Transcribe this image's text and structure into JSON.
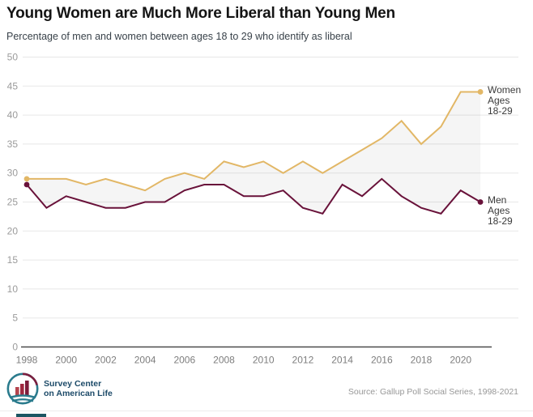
{
  "header": {
    "title": "Young Women are Much More Liberal than Young Men",
    "subtitle": "Percentage of men and women between ages 18 to 29 who identify as liberal"
  },
  "chart_data": {
    "type": "line",
    "x": [
      1998,
      1999,
      2000,
      2001,
      2002,
      2003,
      2004,
      2005,
      2006,
      2007,
      2008,
      2009,
      2010,
      2011,
      2012,
      2013,
      2014,
      2015,
      2016,
      2017,
      2018,
      2019,
      2020,
      2021
    ],
    "series": [
      {
        "name": "Women Ages 18-29",
        "end_label_lines": [
          "Women",
          "Ages",
          "18-29"
        ],
        "color": "#e2b766",
        "values": [
          29,
          29,
          29,
          28,
          29,
          28,
          27,
          29,
          30,
          29,
          32,
          31,
          32,
          30,
          32,
          30,
          32,
          34,
          36,
          39,
          35,
          38,
          44,
          44
        ]
      },
      {
        "name": "Men Ages 18-29",
        "end_label_lines": [
          "Men",
          "Ages",
          "18-29"
        ],
        "color": "#69123a",
        "values": [
          28,
          24,
          26,
          25,
          24,
          24,
          25,
          25,
          27,
          28,
          28,
          26,
          26,
          27,
          24,
          23,
          28,
          26,
          29,
          26,
          24,
          23,
          27,
          25
        ]
      }
    ],
    "title": "Young Women are Much More Liberal than Young Men",
    "xlabel": "",
    "ylabel": "",
    "ylim": [
      0,
      50
    ],
    "yticks": [
      0,
      5,
      10,
      15,
      20,
      25,
      30,
      35,
      40,
      45,
      50
    ],
    "xticks": [
      1998,
      2000,
      2002,
      2004,
      2006,
      2008,
      2010,
      2012,
      2014,
      2016,
      2018,
      2020
    ],
    "grid": true,
    "fill_between_series": true,
    "fill_color": "rgba(128,128,128,0.08)",
    "legend_position": "right-end-labels",
    "colors": {
      "gridline": "#e7e7e7",
      "axis_line": "#4a4a4a",
      "y_tick_text": "#9b9b9b",
      "x_tick_text": "#7d7d7d",
      "end_label_text": "#3a3a3a"
    }
  },
  "footer": {
    "logo_line1": "Survey Center",
    "logo_line2": "on American Life",
    "source": "Source: Gallup Poll Social Series, 1998-2021"
  }
}
